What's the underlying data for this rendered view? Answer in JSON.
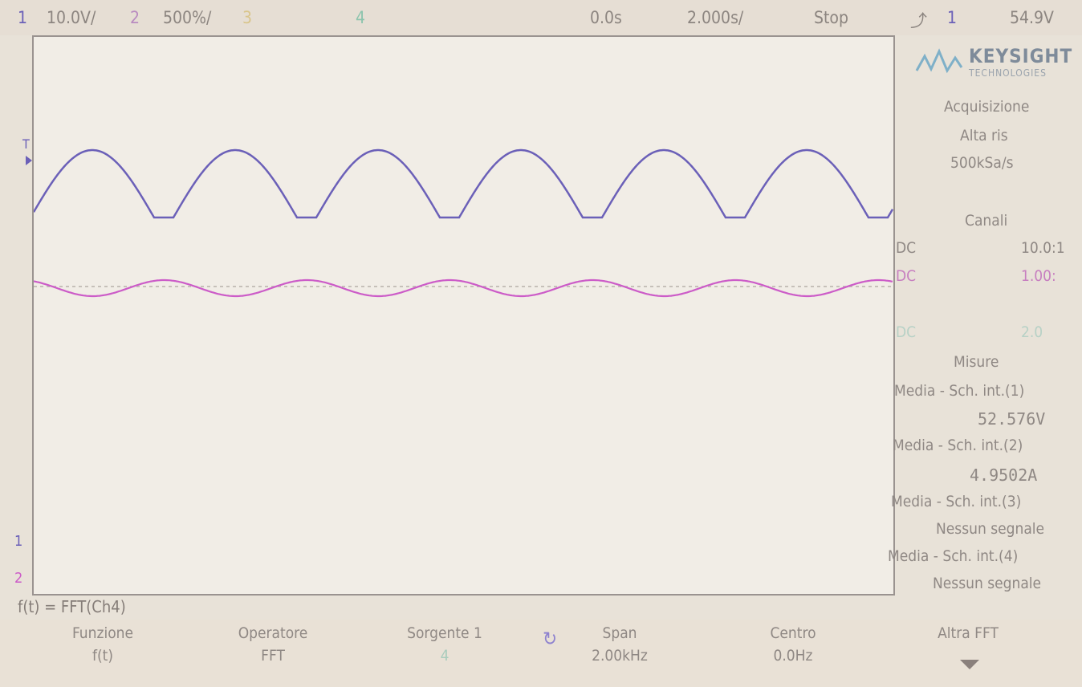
{
  "topbar": {
    "ch1_num": "1",
    "ch1_scale": "10.0V/",
    "ch2_num": "2",
    "ch2_scale": "500%/",
    "ch3_num": "3",
    "ch4_num": "4",
    "time_offset": "0.0s",
    "time_scale": "2.000s/",
    "run_state": "Stop",
    "trigger_icon": "trigger-edge-icon",
    "trigger_source": "1",
    "trigger_level": "54.9V"
  },
  "brand": {
    "name": "KEYSIGHT",
    "sub": "TECHNOLOGIES",
    "logo_color": "#7fb0c8"
  },
  "acquisition": {
    "title": "Acquisizione",
    "mode": "Alta ris",
    "rate": "500kSa/s"
  },
  "channels": {
    "title": "Canali",
    "rows": [
      {
        "coupling": "DC",
        "scale": "10.0:1"
      },
      {
        "coupling": "DC",
        "scale": "1.00:"
      },
      {
        "coupling": "DC",
        "scale": "2.0"
      }
    ]
  },
  "measurements": {
    "title": "Misure",
    "items": [
      {
        "label": "Media - Sch. int.(1)",
        "value": "52.576V"
      },
      {
        "label": "Media - Sch. int.(2)",
        "value": "4.9502A"
      },
      {
        "label": "Media - Sch. int.(3)",
        "value": "Nessun segnale"
      },
      {
        "label": "Media - Sch. int.(4)",
        "value": "Nessun segnale"
      }
    ]
  },
  "markers": {
    "trigger_T": "T",
    "ch1_ground": "1",
    "ch2_ground": "2"
  },
  "math": {
    "formula": "f(t) = FFT(Ch4)"
  },
  "softkeys": [
    {
      "label": "Funzione",
      "value": "f(t)"
    },
    {
      "label": "Operatore",
      "value": "FFT"
    },
    {
      "label": "Sorgente 1",
      "value": "4"
    },
    {
      "label": "Span",
      "value": "2.00kHz"
    },
    {
      "label": "Centro",
      "value": "0.0Hz"
    },
    {
      "label": "Altra FFT",
      "value": ""
    }
  ],
  "colors": {
    "ch1": "#6b60b8",
    "ch2": "#cc5cc8",
    "ch3": "#c7a94a",
    "ch4": "#5aa58a"
  }
}
